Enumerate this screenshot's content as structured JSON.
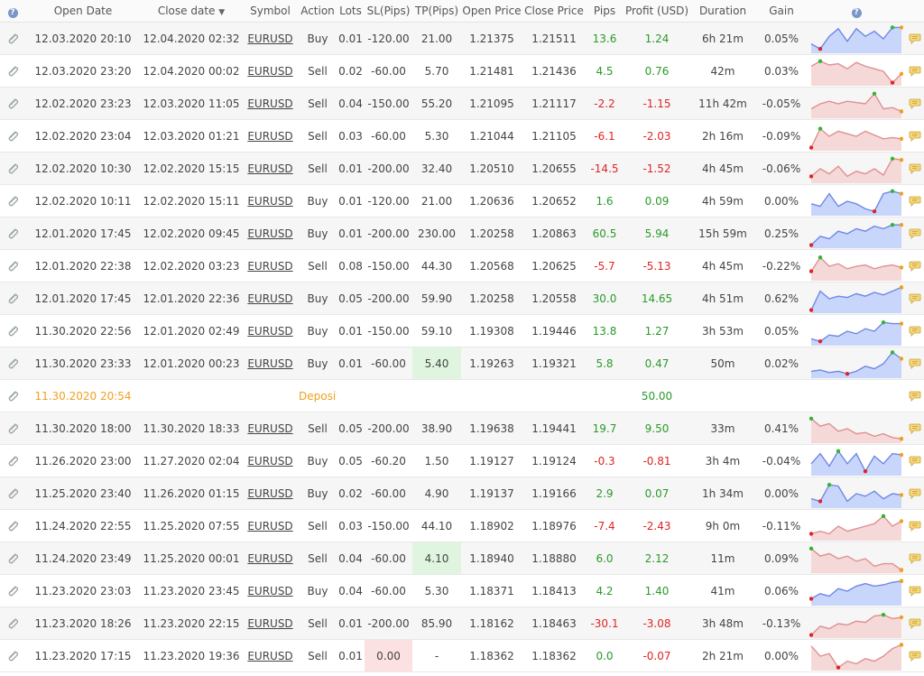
{
  "header": {
    "info_icon_label": "?",
    "open_date": "Open Date",
    "close_date": "Close date",
    "symbol": "Symbol",
    "action": "Action",
    "lots": "Lots",
    "sl": "SL(Pips)",
    "tp": "TP(Pips)",
    "open_price": "Open Price",
    "close_price": "Close Price",
    "pips": "Pips",
    "profit": "Profit (USD)",
    "duration": "Duration",
    "gain": "Gain",
    "chart_info_label": "?"
  },
  "colors": {
    "positive": "#2a9a2a",
    "negative": "#e02424",
    "deposit": "#f0a020",
    "highlight_green": "#dff5df",
    "highlight_red": "#fbe1e1",
    "spark_buy_fill": "#c9d6fb",
    "spark_buy_line": "#6f87e6",
    "spark_sell_fill": "#f5d8d8",
    "spark_sell_line": "#e09090"
  },
  "rows": [
    {
      "open_date": "12.03.2020 20:10",
      "close_date": "12.04.2020 02:32",
      "symbol": "EURUSD",
      "action": "Buy",
      "lots": "0.01",
      "sl": "-120.00",
      "tp": "21.00",
      "open_price": "1.21375",
      "close_price": "1.21511",
      "pips": "13.6",
      "profit": "1.24",
      "duration": "6h 21m",
      "gain": "0.05%",
      "spark": [
        0.3,
        0.1,
        0.6,
        0.9,
        0.4,
        0.9,
        0.6,
        0.8,
        0.5,
        0.95,
        0.95
      ]
    },
    {
      "open_date": "12.03.2020 23:20",
      "close_date": "12.04.2020 00:02",
      "symbol": "EURUSD",
      "action": "Sell",
      "lots": "0.02",
      "sl": "-60.00",
      "tp": "5.70",
      "open_price": "1.21481",
      "close_price": "1.21436",
      "pips": "4.5",
      "profit": "0.76",
      "duration": "42m",
      "gain": "0.03%",
      "spark": [
        0.7,
        0.9,
        0.75,
        0.8,
        0.6,
        0.85,
        0.7,
        0.6,
        0.5,
        0.05,
        0.4
      ]
    },
    {
      "open_date": "12.02.2020 23:23",
      "close_date": "12.03.2020 11:05",
      "symbol": "EURUSD",
      "action": "Sell",
      "lots": "0.04",
      "sl": "-150.00",
      "tp": "55.20",
      "open_price": "1.21095",
      "close_price": "1.21117",
      "pips": "-2.2",
      "profit": "-1.15",
      "duration": "11h 42m",
      "gain": "-0.05%",
      "spark": [
        0.3,
        0.5,
        0.6,
        0.5,
        0.6,
        0.55,
        0.5,
        0.9,
        0.3,
        0.35,
        0.2
      ]
    },
    {
      "open_date": "12.02.2020 23:04",
      "close_date": "12.03.2020 01:21",
      "symbol": "EURUSD",
      "action": "Sell",
      "lots": "0.03",
      "sl": "-60.00",
      "tp": "5.30",
      "open_price": "1.21044",
      "close_price": "1.21105",
      "pips": "-6.1",
      "profit": "-2.03",
      "duration": "2h 16m",
      "gain": "-0.09%",
      "spark": [
        0.05,
        0.8,
        0.5,
        0.7,
        0.6,
        0.5,
        0.7,
        0.55,
        0.4,
        0.45,
        0.4
      ]
    },
    {
      "open_date": "12.02.2020 10:30",
      "close_date": "12.02.2020 15:15",
      "symbol": "EURUSD",
      "action": "Sell",
      "lots": "0.01",
      "sl": "-200.00",
      "tp": "32.40",
      "open_price": "1.20510",
      "close_price": "1.20655",
      "pips": "-14.5",
      "profit": "-1.52",
      "duration": "4h 45m",
      "gain": "-0.06%",
      "spark": [
        0.2,
        0.5,
        0.3,
        0.6,
        0.2,
        0.4,
        0.3,
        0.5,
        0.25,
        0.9,
        0.85
      ]
    },
    {
      "open_date": "12.02.2020 10:11",
      "close_date": "12.02.2020 15:11",
      "symbol": "EURUSD",
      "action": "Buy",
      "lots": "0.01",
      "sl": "-120.00",
      "tp": "21.00",
      "open_price": "1.20636",
      "close_price": "1.20652",
      "pips": "1.6",
      "profit": "0.09",
      "duration": "4h 59m",
      "gain": "0.00%",
      "spark": [
        0.4,
        0.3,
        0.8,
        0.3,
        0.5,
        0.4,
        0.2,
        0.1,
        0.8,
        0.9,
        0.8
      ]
    },
    {
      "open_date": "12.01.2020 17:45",
      "close_date": "12.02.2020 09:45",
      "symbol": "EURUSD",
      "action": "Buy",
      "lots": "0.01",
      "sl": "-200.00",
      "tp": "230.00",
      "open_price": "1.20258",
      "close_price": "1.20863",
      "pips": "60.5",
      "profit": "5.94",
      "duration": "15h 59m",
      "gain": "0.25%",
      "spark": [
        0.05,
        0.4,
        0.3,
        0.6,
        0.5,
        0.7,
        0.6,
        0.8,
        0.7,
        0.85,
        0.85
      ]
    },
    {
      "open_date": "12.01.2020 22:38",
      "close_date": "12.02.2020 03:23",
      "symbol": "EURUSD",
      "action": "Sell",
      "lots": "0.08",
      "sl": "-150.00",
      "tp": "44.30",
      "open_price": "1.20568",
      "close_price": "1.20625",
      "pips": "-5.7",
      "profit": "-5.13",
      "duration": "4h 45m",
      "gain": "-0.22%",
      "spark": [
        0.3,
        0.85,
        0.5,
        0.6,
        0.4,
        0.5,
        0.55,
        0.4,
        0.5,
        0.55,
        0.45
      ]
    },
    {
      "open_date": "12.01.2020 17:45",
      "close_date": "12.01.2020 22:36",
      "symbol": "EURUSD",
      "action": "Buy",
      "lots": "0.05",
      "sl": "-200.00",
      "tp": "59.90",
      "open_price": "1.20258",
      "close_price": "1.20558",
      "pips": "30.0",
      "profit": "14.65",
      "duration": "4h 51m",
      "gain": "0.62%",
      "spark": [
        0.05,
        0.8,
        0.5,
        0.6,
        0.55,
        0.7,
        0.6,
        0.75,
        0.65,
        0.8,
        0.95
      ]
    },
    {
      "open_date": "11.30.2020 22:56",
      "close_date": "12.01.2020 02:49",
      "symbol": "EURUSD",
      "action": "Buy",
      "lots": "0.01",
      "sl": "-150.00",
      "tp": "59.10",
      "open_price": "1.19308",
      "close_price": "1.19446",
      "pips": "13.8",
      "profit": "1.27",
      "duration": "3h 53m",
      "gain": "0.05%",
      "spark": [
        0.2,
        0.1,
        0.35,
        0.3,
        0.5,
        0.4,
        0.6,
        0.5,
        0.85,
        0.8,
        0.8
      ]
    },
    {
      "open_date": "11.30.2020 23:33",
      "close_date": "12.01.2020 00:23",
      "symbol": "EURUSD",
      "action": "Buy",
      "lots": "0.01",
      "sl": "-60.00",
      "tp": "5.40",
      "open_price": "1.19263",
      "close_price": "1.19321",
      "pips": "5.8",
      "profit": "0.47",
      "duration": "50m",
      "gain": "0.02%",
      "tp_highlight": "green",
      "spark": [
        0.2,
        0.25,
        0.15,
        0.2,
        0.1,
        0.2,
        0.4,
        0.3,
        0.5,
        0.95,
        0.7
      ]
    },
    {
      "deposit": true,
      "open_date": "11.30.2020 20:54",
      "action": "Deposit",
      "profit": "50.00"
    },
    {
      "open_date": "11.30.2020 18:00",
      "close_date": "11.30.2020 18:33",
      "symbol": "EURUSD",
      "action": "Sell",
      "lots": "0.05",
      "sl": "-200.00",
      "tp": "38.90",
      "open_price": "1.19638",
      "close_price": "1.19441",
      "pips": "19.7",
      "profit": "9.50",
      "duration": "33m",
      "gain": "0.41%",
      "spark": [
        0.9,
        0.6,
        0.7,
        0.4,
        0.5,
        0.3,
        0.35,
        0.2,
        0.3,
        0.15,
        0.1
      ]
    },
    {
      "open_date": "11.26.2020 23:00",
      "close_date": "11.27.2020 02:04",
      "symbol": "EURUSD",
      "action": "Buy",
      "lots": "0.05",
      "sl": "-60.20",
      "tp": "1.50",
      "open_price": "1.19127",
      "close_price": "1.19124",
      "pips": "-0.3",
      "profit": "-0.81",
      "duration": "3h 4m",
      "gain": "-0.04%",
      "spark": [
        0.4,
        0.8,
        0.3,
        0.9,
        0.4,
        0.8,
        0.1,
        0.7,
        0.4,
        0.8,
        0.75
      ]
    },
    {
      "open_date": "11.25.2020 23:40",
      "close_date": "11.26.2020 01:15",
      "symbol": "EURUSD",
      "action": "Buy",
      "lots": "0.02",
      "sl": "-60.00",
      "tp": "4.90",
      "open_price": "1.19137",
      "close_price": "1.19166",
      "pips": "2.9",
      "profit": "0.07",
      "duration": "1h 34m",
      "gain": "0.00%",
      "spark": [
        0.3,
        0.2,
        0.85,
        0.8,
        0.2,
        0.5,
        0.4,
        0.6,
        0.3,
        0.5,
        0.45
      ]
    },
    {
      "open_date": "11.24.2020 22:55",
      "close_date": "11.25.2020 07:55",
      "symbol": "EURUSD",
      "action": "Sell",
      "lots": "0.03",
      "sl": "-150.00",
      "tp": "44.10",
      "open_price": "1.18902",
      "close_price": "1.18976",
      "pips": "-7.4",
      "profit": "-2.43",
      "duration": "9h 0m",
      "gain": "-0.11%",
      "spark": [
        0.2,
        0.3,
        0.2,
        0.5,
        0.3,
        0.4,
        0.5,
        0.6,
        0.9,
        0.5,
        0.7
      ]
    },
    {
      "open_date": "11.24.2020 23:49",
      "close_date": "11.25.2020 00:01",
      "symbol": "EURUSD",
      "action": "Sell",
      "lots": "0.04",
      "sl": "-60.00",
      "tp": "4.10",
      "open_price": "1.18940",
      "close_price": "1.18880",
      "pips": "6.0",
      "profit": "2.12",
      "duration": "11m",
      "gain": "0.09%",
      "tp_highlight": "green",
      "spark": [
        0.9,
        0.6,
        0.7,
        0.5,
        0.6,
        0.4,
        0.5,
        0.2,
        0.3,
        0.3,
        0.05
      ]
    },
    {
      "open_date": "11.23.2020 23:03",
      "close_date": "11.23.2020 23:45",
      "symbol": "EURUSD",
      "action": "Buy",
      "lots": "0.04",
      "sl": "-60.00",
      "tp": "5.30",
      "open_price": "1.18371",
      "close_price": "1.18413",
      "pips": "4.2",
      "profit": "1.40",
      "duration": "41m",
      "gain": "0.06%",
      "spark": [
        0.2,
        0.4,
        0.3,
        0.6,
        0.5,
        0.7,
        0.8,
        0.7,
        0.75,
        0.85,
        0.9
      ]
    },
    {
      "open_date": "11.23.2020 18:26",
      "close_date": "11.23.2020 22:15",
      "symbol": "EURUSD",
      "action": "Sell",
      "lots": "0.01",
      "sl": "-200.00",
      "tp": "85.90",
      "open_price": "1.18162",
      "close_price": "1.18463",
      "pips": "-30.1",
      "profit": "-3.08",
      "duration": "3h 48m",
      "gain": "-0.13%",
      "spark": [
        0.05,
        0.4,
        0.3,
        0.5,
        0.45,
        0.6,
        0.55,
        0.8,
        0.85,
        0.7,
        0.75
      ]
    },
    {
      "open_date": "11.23.2020 17:15",
      "close_date": "11.23.2020 19:36",
      "symbol": "EURUSD",
      "action": "Sell",
      "lots": "0.01",
      "sl": "0.00",
      "tp": "-",
      "open_price": "1.18362",
      "close_price": "1.18362",
      "pips": "0.0",
      "profit": "-0.07",
      "duration": "2h 21m",
      "gain": "0.00%",
      "sl_highlight": "red",
      "spark": [
        0.9,
        0.5,
        0.6,
        0.05,
        0.3,
        0.2,
        0.4,
        0.3,
        0.5,
        0.8,
        0.95
      ]
    }
  ]
}
